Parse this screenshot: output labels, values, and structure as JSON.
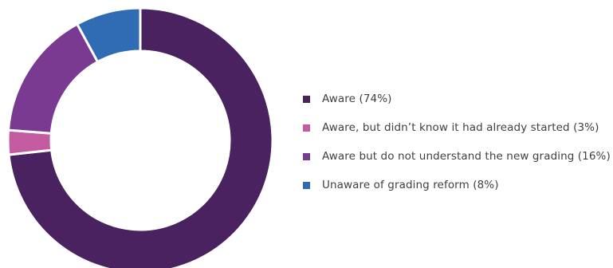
{
  "chart_data": {
    "type": "pie",
    "categories": [
      "Aware (74%)",
      "Aware, but didn’t know it had already started (3%)",
      "Aware but do not understand the new grading (16%)",
      "Unaware of grading reform (8%)"
    ],
    "values": [
      74,
      3,
      16,
      8
    ],
    "colors": [
      "#4a2260",
      "#c45a9f",
      "#7a3a92",
      "#2f6cb4"
    ],
    "donut": true,
    "legend_position": "right"
  }
}
